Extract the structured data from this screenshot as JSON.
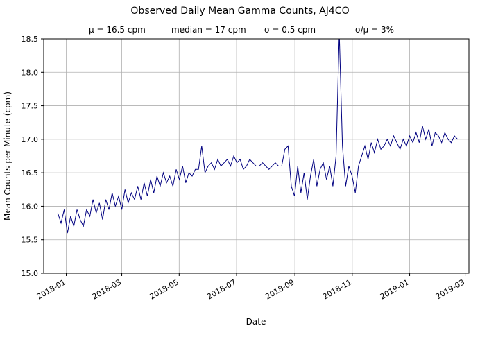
{
  "chart_data": {
    "type": "line",
    "title": "Observed Daily Mean Gamma Counts, AJ4CO",
    "stats": [
      "μ = 16.5 cpm",
      "median = 17 cpm",
      "σ = 0.5 cpm",
      "σ/μ = 3%"
    ],
    "xlabel": "Date",
    "ylabel": "Mean Counts per Minute (cpm)",
    "ylim": [
      15.0,
      18.5
    ],
    "y_ticks": [
      15.0,
      15.5,
      16.0,
      16.5,
      17.0,
      17.5,
      18.0,
      18.5
    ],
    "x_ticks": [
      "2018-01",
      "2018-03",
      "2018-05",
      "2018-07",
      "2018-09",
      "2018-11",
      "2019-01",
      "2019-03"
    ],
    "x_range": [
      "2017-12-08",
      "2019-03-05"
    ],
    "grid": true,
    "legend_position": "none",
    "line_color": "#000080",
    "grid_color": "#b0b0b0",
    "series": [
      {
        "name": "daily-mean-gamma-counts",
        "x_start": "2017-12-23",
        "x_step_days": 3.4,
        "values": [
          15.9,
          15.75,
          15.95,
          15.6,
          15.85,
          15.7,
          15.95,
          15.8,
          15.7,
          15.95,
          15.85,
          16.1,
          15.9,
          16.05,
          15.8,
          16.1,
          15.95,
          16.2,
          16.0,
          16.15,
          15.95,
          16.25,
          16.05,
          16.2,
          16.1,
          16.3,
          16.1,
          16.35,
          16.15,
          16.4,
          16.2,
          16.45,
          16.3,
          16.5,
          16.35,
          16.45,
          16.3,
          16.55,
          16.4,
          16.6,
          16.35,
          16.5,
          16.45,
          16.55,
          16.55,
          16.9,
          16.5,
          16.6,
          16.65,
          16.55,
          16.7,
          16.6,
          16.65,
          16.7,
          16.6,
          16.75,
          16.65,
          16.7,
          16.55,
          16.6,
          16.7,
          16.65,
          16.6,
          16.6,
          16.65,
          16.6,
          16.55,
          16.6,
          16.65,
          16.6,
          16.6,
          16.85,
          16.9,
          16.3,
          16.15,
          16.6,
          16.2,
          16.5,
          16.1,
          16.45,
          16.7,
          16.3,
          16.55,
          16.65,
          16.4,
          16.6,
          16.3,
          16.75,
          18.6,
          16.9,
          16.3,
          16.6,
          16.45,
          16.2,
          16.6,
          16.75,
          16.9,
          16.7,
          16.95,
          16.8,
          17.0,
          16.85,
          16.9,
          17.0,
          16.9,
          17.05,
          16.95,
          16.85,
          17.0,
          16.9,
          17.05,
          16.95,
          17.1,
          16.95,
          17.2,
          17.0,
          17.15,
          16.9,
          17.1,
          17.05,
          16.95,
          17.1,
          17.0,
          16.95,
          17.05,
          17.0
        ]
      }
    ]
  }
}
